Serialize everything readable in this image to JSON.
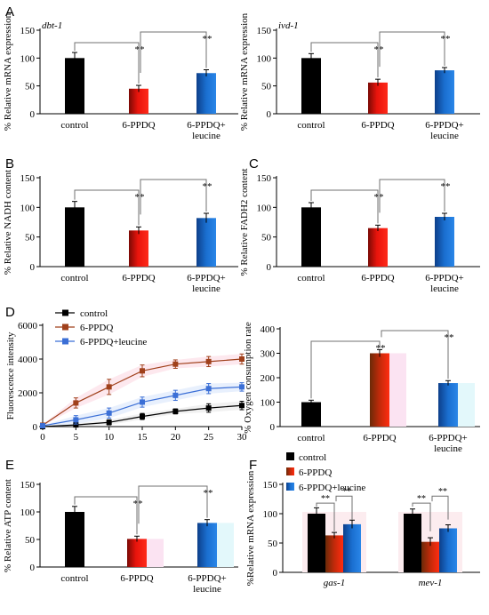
{
  "colors": {
    "control": "#000000",
    "ppdq": "#e8140c",
    "leucine": "#1a6fd0",
    "ppdq_line": "#a0401b",
    "leucine_line": "#3b6fd6",
    "sig": "#707070"
  },
  "chart_data": [
    {
      "id": "A1",
      "panel_label": "A",
      "type": "bar",
      "title": "dbt-1",
      "ylabel": "% Relative  mRNA  expression",
      "ylim": [
        0,
        150
      ],
      "yticks": [
        0,
        50,
        100,
        150
      ],
      "categories": [
        "control",
        "6-PPDQ",
        "6-PPDQ+\nleucine"
      ],
      "values": [
        100,
        45,
        73
      ],
      "errors": [
        10,
        6,
        6
      ],
      "significance": [
        {
          "from": 0,
          "to": 1,
          "label": "**"
        },
        {
          "from": 1,
          "to": 2,
          "label": "**"
        }
      ]
    },
    {
      "id": "A2",
      "type": "bar",
      "title": "ivd-1",
      "ylabel": "% Relative  mRNA  expression",
      "ylim": [
        0,
        150
      ],
      "yticks": [
        0,
        50,
        100,
        150
      ],
      "categories": [
        "control",
        "6-PPDQ",
        "6-PPDQ+\nleucine"
      ],
      "values": [
        100,
        56,
        78
      ],
      "errors": [
        8,
        6,
        5
      ],
      "significance": [
        {
          "from": 0,
          "to": 1,
          "label": "**"
        },
        {
          "from": 1,
          "to": 2,
          "label": "**"
        }
      ]
    },
    {
      "id": "B",
      "panel_label": "B",
      "type": "bar",
      "ylabel": "% Relative NADH content",
      "ylim": [
        0,
        150
      ],
      "yticks": [
        0,
        50,
        100,
        150
      ],
      "categories": [
        "control",
        "6-PPDQ",
        "6-PPDQ+\nleucine"
      ],
      "values": [
        100,
        61,
        82
      ],
      "errors": [
        10,
        6,
        8
      ],
      "significance": [
        {
          "from": 0,
          "to": 1,
          "label": "**"
        },
        {
          "from": 1,
          "to": 2,
          "label": "**"
        }
      ]
    },
    {
      "id": "C",
      "panel_label": "C",
      "type": "bar",
      "ylabel": "% Relative FADH2 content",
      "ylim": [
        0,
        150
      ],
      "yticks": [
        0,
        50,
        100,
        150
      ],
      "categories": [
        "control",
        "6-PPDQ",
        "6-PPDQ+\nleucine"
      ],
      "values": [
        100,
        65,
        84
      ],
      "errors": [
        8,
        5,
        6
      ],
      "significance": [
        {
          "from": 0,
          "to": 1,
          "label": "**"
        },
        {
          "from": 1,
          "to": 2,
          "label": "**"
        }
      ]
    },
    {
      "id": "D1",
      "panel_label": "D",
      "type": "line",
      "ylabel": "Fluorescence intensity",
      "ylim": [
        0,
        6000
      ],
      "yticks": [
        0,
        2000,
        4000,
        6000
      ],
      "xlim": [
        0,
        30
      ],
      "xticks": [
        0,
        5,
        10,
        15,
        20,
        25,
        30
      ],
      "x": [
        0,
        5,
        10,
        15,
        20,
        25,
        30
      ],
      "legend": "top-left",
      "series": [
        {
          "name": "control",
          "color_key": "control",
          "values": [
            0,
            100,
            250,
            600,
            900,
            1100,
            1250
          ],
          "errors": [
            30,
            80,
            150,
            180,
            150,
            250,
            250
          ]
        },
        {
          "name": "6-PPDQ",
          "color_key": "ppdq_line",
          "values": [
            80,
            1400,
            2350,
            3300,
            3700,
            3850,
            4000
          ],
          "errors": [
            40,
            300,
            450,
            350,
            250,
            300,
            300
          ]
        },
        {
          "name": "6-PPDQ+leucine",
          "color_key": "leucine_line",
          "values": [
            50,
            400,
            800,
            1450,
            1850,
            2250,
            2350
          ],
          "errors": [
            30,
            250,
            300,
            300,
            300,
            300,
            250
          ]
        }
      ]
    },
    {
      "id": "D2",
      "type": "bar",
      "ylabel": "% Oxygen consumption rate",
      "ylim": [
        0,
        400
      ],
      "yticks": [
        0,
        100,
        200,
        300,
        400
      ],
      "categories": [
        "control",
        "6-PPDQ",
        "6-PPDQ+\nleucine"
      ],
      "values": [
        100,
        300,
        178
      ],
      "errors": [
        8,
        15,
        10
      ],
      "significance": [
        {
          "from": 0,
          "to": 1,
          "label": "**"
        },
        {
          "from": 1,
          "to": 2,
          "label": "**"
        }
      ]
    },
    {
      "id": "E",
      "panel_label": "E",
      "type": "bar",
      "ylabel": "% Relative ATP content",
      "ylim": [
        0,
        150
      ],
      "yticks": [
        0,
        50,
        100,
        150
      ],
      "categories": [
        "control",
        "6-PPDQ",
        "6-PPDQ+\nleucine"
      ],
      "values": [
        100,
        51,
        80
      ],
      "errors": [
        10,
        5,
        6
      ],
      "significance": [
        {
          "from": 0,
          "to": 1,
          "label": "**"
        },
        {
          "from": 1,
          "to": 2,
          "label": "**"
        }
      ]
    },
    {
      "id": "F",
      "panel_label": "F",
      "type": "bar",
      "ylabel": "%Relative  mRNA  expression",
      "ylim": [
        0,
        150
      ],
      "yticks": [
        0,
        50,
        100,
        150
      ],
      "categories": [
        "gas-1",
        "mev-1"
      ],
      "legend": "top-left",
      "series": [
        {
          "name": "control",
          "color_key": "control",
          "values": [
            100,
            100
          ],
          "errors": [
            10,
            8
          ]
        },
        {
          "name": "6-PPDQ",
          "color_key": "ppdq",
          "values": [
            63,
            52
          ],
          "errors": [
            5,
            7
          ]
        },
        {
          "name": "6-PPDQ+leucine",
          "color_key": "leucine",
          "values": [
            82,
            75
          ],
          "errors": [
            7,
            6
          ]
        }
      ],
      "significance": [
        {
          "label": "**"
        },
        {
          "label": "**"
        },
        {
          "label": "**"
        },
        {
          "label": "**"
        }
      ]
    }
  ]
}
